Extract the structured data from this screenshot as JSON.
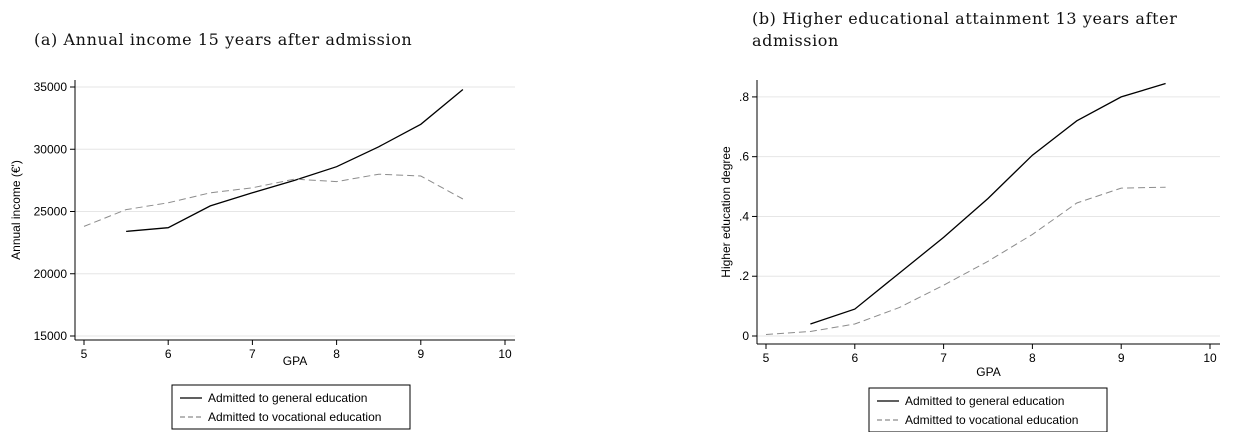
{
  "chart_data": [
    {
      "type": "line",
      "title": "(a) Annual income 15 years after admission",
      "xlabel": "GPA",
      "ylabel": "Annual income (€')",
      "xlim": [
        5,
        10
      ],
      "ylim": [
        15000,
        35000
      ],
      "xticks": [
        5,
        6,
        7,
        8,
        9,
        10
      ],
      "yticks": [
        15000,
        20000,
        25000,
        30000,
        35000
      ],
      "ytick_labels": [
        "15000",
        "20000",
        "25000",
        "30000",
        "35000"
      ],
      "grid": true,
      "legend_position": "bottom",
      "series": [
        {
          "name": "Admitted to general education",
          "style": "solid",
          "color": "#000000",
          "x": [
            5.5,
            6.0,
            6.5,
            7.0,
            7.5,
            8.0,
            8.5,
            9.0,
            9.5
          ],
          "y": [
            23400,
            23700,
            25450,
            26500,
            27500,
            28600,
            30200,
            32000,
            34800
          ]
        },
        {
          "name": "Admitted to vocational education",
          "style": "dashed",
          "color": "#8c8c8c",
          "x": [
            5.0,
            5.5,
            6.0,
            6.5,
            7.0,
            7.5,
            8.0,
            8.5,
            9.0,
            9.5
          ],
          "y": [
            23800,
            25150,
            25700,
            26500,
            26900,
            27600,
            27400,
            28000,
            27850,
            26000
          ]
        }
      ]
    },
    {
      "type": "line",
      "title": "(b) Higher educational attainment 13 years after admission",
      "xlabel": "GPA",
      "ylabel": "Higher education degree",
      "xlim": [
        5,
        10
      ],
      "ylim": [
        0,
        0.88
      ],
      "xticks": [
        5,
        6,
        7,
        8,
        9,
        10
      ],
      "yticks": [
        0,
        0.2,
        0.4,
        0.6,
        0.8
      ],
      "ytick_labels": [
        "0",
        ".2",
        ".4",
        ".6",
        ".8"
      ],
      "grid": true,
      "legend_position": "bottom",
      "series": [
        {
          "name": "Admitted to general education",
          "style": "solid",
          "color": "#000000",
          "x": [
            5.5,
            6.0,
            6.5,
            7.0,
            7.5,
            8.0,
            8.5,
            9.0,
            9.5
          ],
          "y": [
            0.04,
            0.09,
            0.21,
            0.33,
            0.46,
            0.605,
            0.72,
            0.8,
            0.845
          ]
        },
        {
          "name": "Admitted to vocational education",
          "style": "dashed",
          "color": "#8c8c8c",
          "x": [
            5.0,
            5.5,
            6.0,
            6.5,
            7.0,
            7.5,
            8.0,
            8.5,
            9.0,
            9.5
          ],
          "y": [
            0.005,
            0.015,
            0.04,
            0.095,
            0.17,
            0.25,
            0.34,
            0.445,
            0.495,
            0.498
          ]
        }
      ]
    }
  ]
}
